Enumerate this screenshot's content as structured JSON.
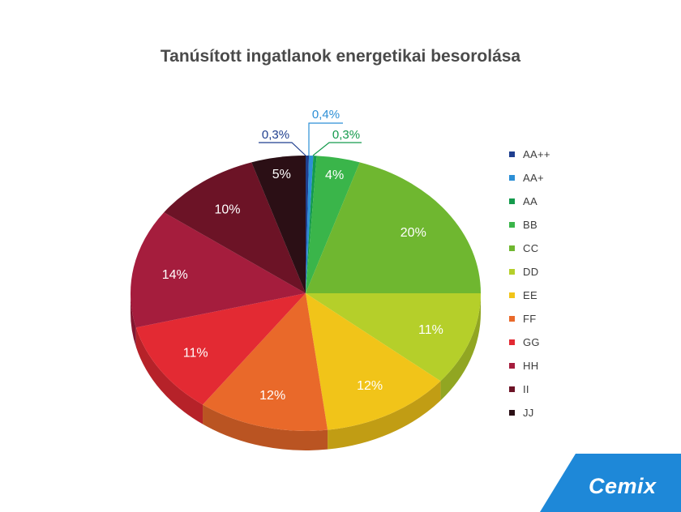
{
  "chart_data": {
    "type": "pie",
    "title": "Tanúsított ingatlanok energetikai besorolása",
    "categories": [
      "AA++",
      "AA+",
      "AA",
      "BB",
      "CC",
      "DD",
      "EE",
      "FF",
      "GG",
      "HH",
      "II",
      "JJ"
    ],
    "values": [
      0.3,
      0.4,
      0.3,
      4,
      20,
      11,
      12,
      12,
      11,
      14,
      10,
      5
    ],
    "labels": [
      "0,3%",
      "0,4%",
      "0,3%",
      "4%",
      "20%",
      "11%",
      "12%",
      "12%",
      "11%",
      "14%",
      "10%",
      "5%"
    ],
    "colors": [
      "#1f3f8f",
      "#2c8fd6",
      "#149a4c",
      "#3ab54a",
      "#6fb730",
      "#b5cf2a",
      "#f1c419",
      "#e9692a",
      "#e32a33",
      "#a51d3d",
      "#6c1326",
      "#2b0f15"
    ],
    "legend_position": "right"
  },
  "brand": {
    "name": "Cemix",
    "color": "#1e88d8"
  }
}
